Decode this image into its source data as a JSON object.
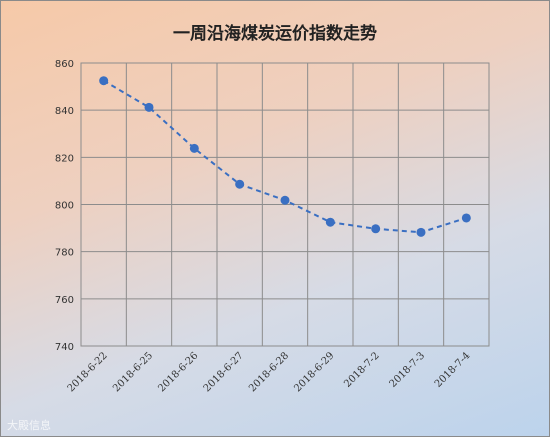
{
  "chart_data": {
    "type": "line",
    "title": "一周沿海煤炭运价指数走势",
    "xlabel": "",
    "ylabel": "",
    "categories": [
      "2018-6-22",
      "2018-6-25",
      "2018-6-26",
      "2018-6-27",
      "2018-6-28",
      "2018-6-29",
      "2018-7-2",
      "2018-7-3",
      "2018-7-4"
    ],
    "series": [
      {
        "values": [
          852.5,
          841.2,
          823.8,
          808.6,
          801.8,
          792.5,
          789.7,
          788.2,
          794.3
        ]
      }
    ],
    "ylim": [
      740,
      860
    ],
    "yticks": [
      740,
      760,
      780,
      800,
      820,
      840,
      860
    ],
    "grid": true,
    "line_color": "#3a6fc2",
    "line_style": "dashed",
    "marker": "circle"
  },
  "watermark": "大殿信息"
}
